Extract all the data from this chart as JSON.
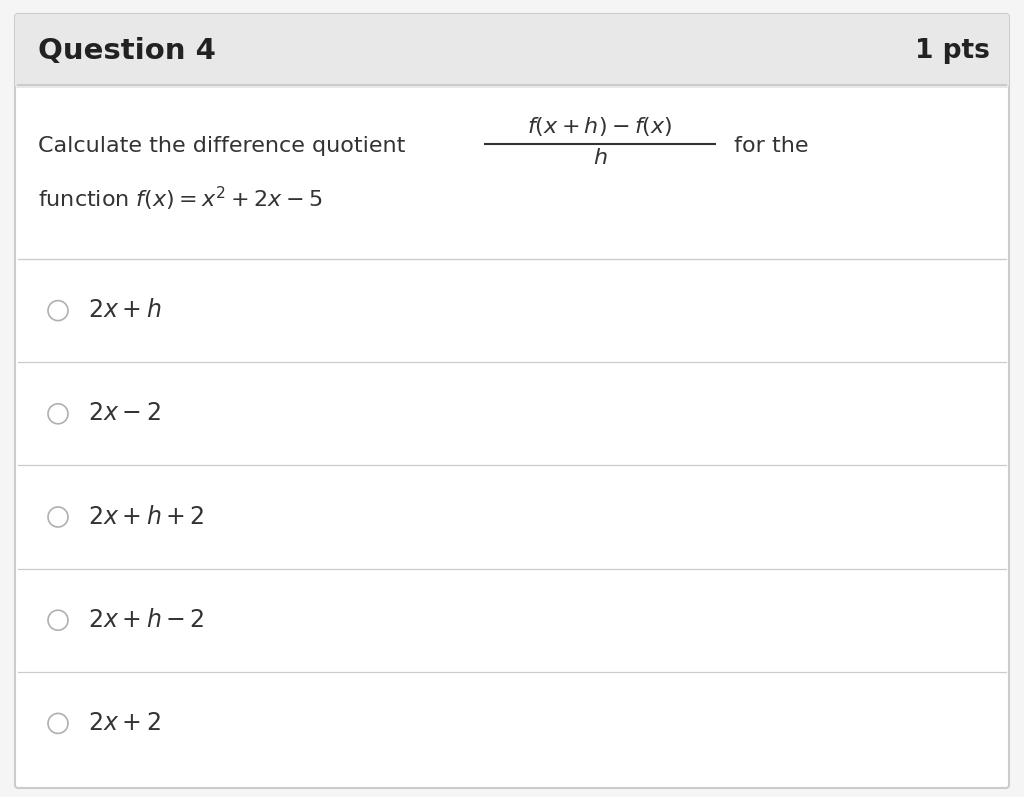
{
  "title": "Question 4",
  "pts": "1 pts",
  "header_bg": "#e8e8e8",
  "body_bg": "#f5f5f5",
  "card_bg": "#ffffff",
  "border_color": "#cccccc",
  "title_color": "#222222",
  "text_color": "#333333",
  "figsize": [
    10.24,
    7.97
  ],
  "dpi": 100,
  "choices": [
    "$2x + h$",
    "$2x - 2$",
    "$2x + h + 2$",
    "$2x + h - 2$",
    "$2x + 2$"
  ]
}
